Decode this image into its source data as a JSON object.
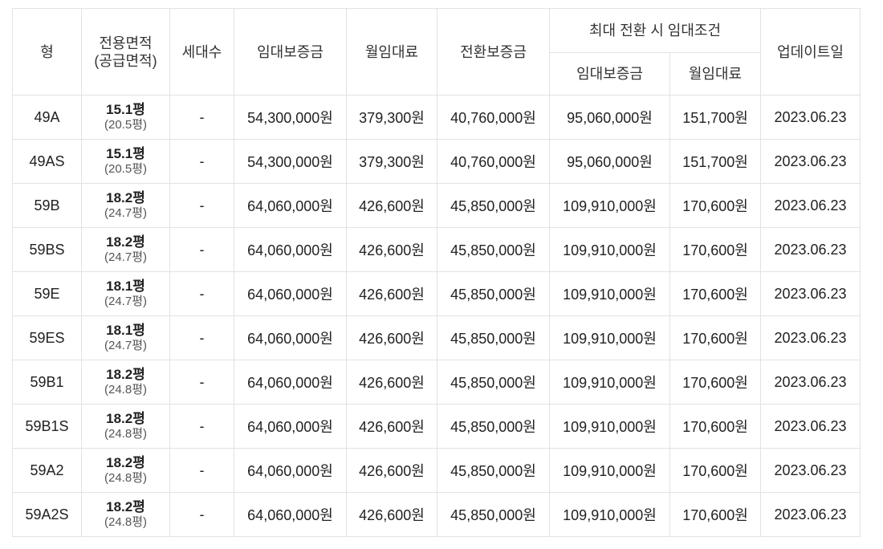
{
  "headers": {
    "type": "형",
    "area_line1": "전용면적",
    "area_line2": "(공급면적)",
    "households": "세대수",
    "deposit": "임대보증금",
    "monthly_rent": "월임대료",
    "conversion_deposit": "전환보증금",
    "max_conversion": "최대 전환 시 임대조건",
    "max_deposit": "임대보증금",
    "max_monthly_rent": "월임대료",
    "updated": "업데이트일"
  },
  "rows": [
    {
      "type": "49A",
      "area": "15.1평",
      "supply": "(20.5평)",
      "households": "-",
      "deposit": "54,300,000원",
      "rent": "379,300원",
      "conv": "40,760,000원",
      "max_deposit": "95,060,000원",
      "max_rent": "151,700원",
      "updated": "2023.06.23"
    },
    {
      "type": "49AS",
      "area": "15.1평",
      "supply": "(20.5평)",
      "households": "-",
      "deposit": "54,300,000원",
      "rent": "379,300원",
      "conv": "40,760,000원",
      "max_deposit": "95,060,000원",
      "max_rent": "151,700원",
      "updated": "2023.06.23"
    },
    {
      "type": "59B",
      "area": "18.2평",
      "supply": "(24.7평)",
      "households": "-",
      "deposit": "64,060,000원",
      "rent": "426,600원",
      "conv": "45,850,000원",
      "max_deposit": "109,910,000원",
      "max_rent": "170,600원",
      "updated": "2023.06.23"
    },
    {
      "type": "59BS",
      "area": "18.2평",
      "supply": "(24.7평)",
      "households": "-",
      "deposit": "64,060,000원",
      "rent": "426,600원",
      "conv": "45,850,000원",
      "max_deposit": "109,910,000원",
      "max_rent": "170,600원",
      "updated": "2023.06.23"
    },
    {
      "type": "59E",
      "area": "18.1평",
      "supply": "(24.7평)",
      "households": "-",
      "deposit": "64,060,000원",
      "rent": "426,600원",
      "conv": "45,850,000원",
      "max_deposit": "109,910,000원",
      "max_rent": "170,600원",
      "updated": "2023.06.23"
    },
    {
      "type": "59ES",
      "area": "18.1평",
      "supply": "(24.7평)",
      "households": "-",
      "deposit": "64,060,000원",
      "rent": "426,600원",
      "conv": "45,850,000원",
      "max_deposit": "109,910,000원",
      "max_rent": "170,600원",
      "updated": "2023.06.23"
    },
    {
      "type": "59B1",
      "area": "18.2평",
      "supply": "(24.8평)",
      "households": "-",
      "deposit": "64,060,000원",
      "rent": "426,600원",
      "conv": "45,850,000원",
      "max_deposit": "109,910,000원",
      "max_rent": "170,600원",
      "updated": "2023.06.23"
    },
    {
      "type": "59B1S",
      "area": "18.2평",
      "supply": "(24.8평)",
      "households": "-",
      "deposit": "64,060,000원",
      "rent": "426,600원",
      "conv": "45,850,000원",
      "max_deposit": "109,910,000원",
      "max_rent": "170,600원",
      "updated": "2023.06.23"
    },
    {
      "type": "59A2",
      "area": "18.2평",
      "supply": "(24.8평)",
      "households": "-",
      "deposit": "64,060,000원",
      "rent": "426,600원",
      "conv": "45,850,000원",
      "max_deposit": "109,910,000원",
      "max_rent": "170,600원",
      "updated": "2023.06.23"
    },
    {
      "type": "59A2S",
      "area": "18.2평",
      "supply": "(24.8평)",
      "households": "-",
      "deposit": "64,060,000원",
      "rent": "426,600원",
      "conv": "45,850,000원",
      "max_deposit": "109,910,000원",
      "max_rent": "170,600원",
      "updated": "2023.06.23"
    }
  ]
}
